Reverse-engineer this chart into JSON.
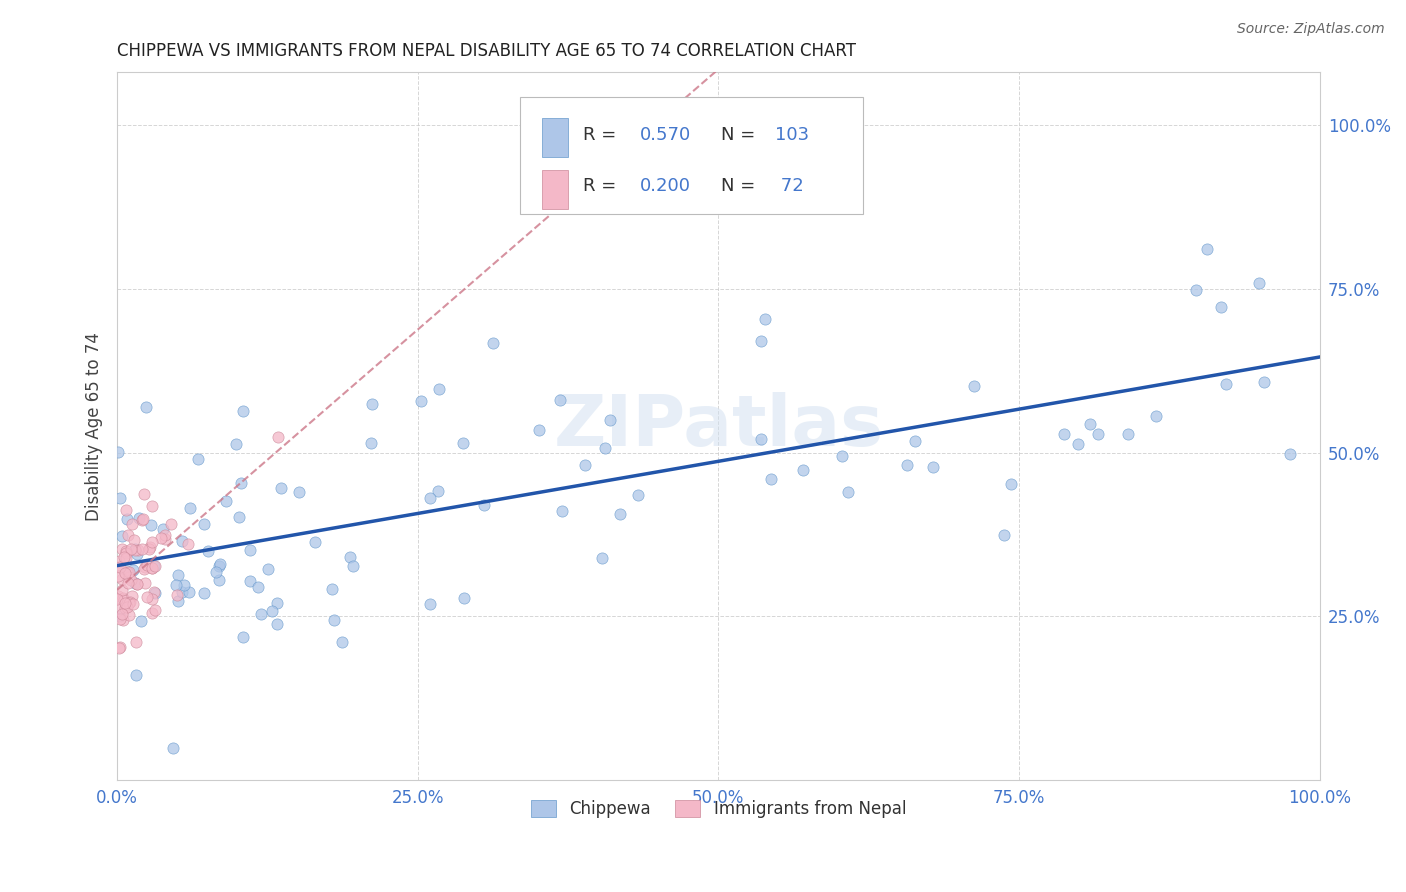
{
  "title": "CHIPPEWA VS IMMIGRANTS FROM NEPAL DISABILITY AGE 65 TO 74 CORRELATION CHART",
  "source": "Source: ZipAtlas.com",
  "ylabel": "Disability Age 65 to 74",
  "xlim": [
    0.0,
    1.0
  ],
  "ylim": [
    0.0,
    1.08
  ],
  "xtick_positions": [
    0.0,
    0.25,
    0.5,
    0.75,
    1.0
  ],
  "xtick_labels": [
    "0.0%",
    "25.0%",
    "50.0%",
    "75.0%",
    "100.0%"
  ],
  "ytick_positions": [
    0.25,
    0.5,
    0.75,
    1.0
  ],
  "ytick_labels": [
    "25.0%",
    "50.0%",
    "75.0%",
    "100.0%"
  ],
  "chippewa_color": "#aec6e8",
  "chippewa_edge_color": "#6699cc",
  "nepal_color": "#f4b8c8",
  "nepal_edge_color": "#cc8899",
  "chippewa_line_color": "#2255aa",
  "nepal_line_color": "#cc7788",
  "tick_label_color": "#4477cc",
  "ylabel_color": "#444444",
  "title_color": "#222222",
  "source_color": "#666666",
  "watermark": "ZIPatlas",
  "watermark_color": "#d0dff0",
  "background_color": "#ffffff",
  "grid_color": "#cccccc",
  "legend_box_color": "#ffffff",
  "legend_border_color": "#bbbbbb",
  "legend_text_color": "#4477cc",
  "legend_label_color": "#333333"
}
